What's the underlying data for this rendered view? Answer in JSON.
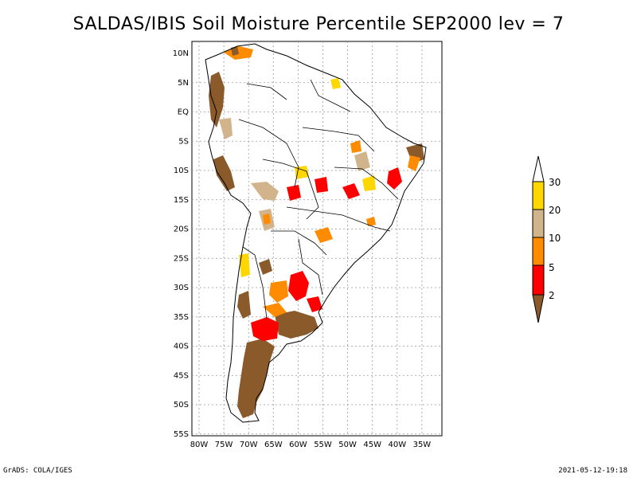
{
  "title": "SALDAS/IBIS Soil Moisture Percentile SEP2000 lev = 7",
  "lat_labels": [
    "10N",
    "5N",
    "EQ",
    "5S",
    "10S",
    "15S",
    "20S",
    "25S",
    "30S",
    "35S",
    "40S",
    "45S",
    "50S",
    "55S"
  ],
  "lon_labels": [
    "80W",
    "75W",
    "70W",
    "65W",
    "60W",
    "55W",
    "50W",
    "45W",
    "40W",
    "35W"
  ],
  "colorbar": {
    "labels": [
      "30",
      "20",
      "10",
      "5",
      "2"
    ],
    "colors": {
      "above_30": "#ffffff",
      "20_30": "#ffd700",
      "10_20": "#d2b48c",
      "5_10": "#ff8c00",
      "2_5": "#ff0000",
      "below_2": "#8b5a2b"
    }
  },
  "footer": {
    "left": "GrADS: COLA/IGES",
    "right": "2021-05-12-19:18"
  }
}
